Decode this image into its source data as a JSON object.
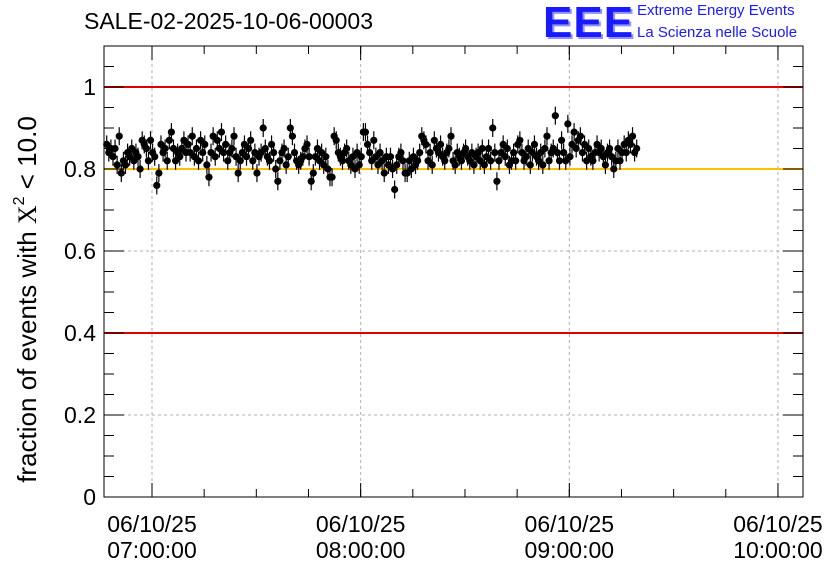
{
  "chart_data": {
    "type": "scatter",
    "title": "SALE-02-2025-10-06-00003",
    "ylabel_prefix": "fraction of events with ",
    "ylabel_chi": "X",
    "ylabel_sup": "2",
    "ylabel_suffix": " < 10.0",
    "ylim": [
      0,
      1.1
    ],
    "yticks": [
      "0",
      "0.2",
      "0.4",
      "0.6",
      "0.8",
      "1"
    ],
    "ytick_values": [
      0,
      0.2,
      0.4,
      0.6,
      0.8,
      1.0
    ],
    "xlim_hours": [
      6.77,
      10.12
    ],
    "xticks": [
      {
        "hour": 7,
        "date": "06/10/25",
        "time": "07:00:00"
      },
      {
        "hour": 8,
        "date": "06/10/25",
        "time": "08:00:00"
      },
      {
        "hour": 9,
        "date": "06/10/25",
        "time": "09:00:00"
      },
      {
        "hour": 10,
        "date": "06/10/25",
        "time": "10:00:00"
      }
    ],
    "ref_lines": [
      {
        "y": 1.0,
        "color": "#e00000"
      },
      {
        "y": 0.4,
        "color": "#e00000"
      },
      {
        "y": 0.8,
        "color": "#ffc000"
      }
    ],
    "error": 0.022,
    "x_start_hour": 6.783,
    "x_step_hour": 0.01,
    "values": [
      0.86,
      0.84,
      0.85,
      0.83,
      0.85,
      0.81,
      0.88,
      0.79,
      0.82,
      0.81,
      0.84,
      0.83,
      0.85,
      0.82,
      0.84,
      0.83,
      0.8,
      0.87,
      0.86,
      0.85,
      0.82,
      0.87,
      0.84,
      0.83,
      0.76,
      0.79,
      0.86,
      0.84,
      0.85,
      0.82,
      0.87,
      0.89,
      0.85,
      0.82,
      0.84,
      0.83,
      0.85,
      0.87,
      0.84,
      0.86,
      0.84,
      0.88,
      0.83,
      0.85,
      0.82,
      0.87,
      0.84,
      0.86,
      0.81,
      0.78,
      0.84,
      0.88,
      0.83,
      0.87,
      0.85,
      0.89,
      0.84,
      0.86,
      0.82,
      0.84,
      0.85,
      0.88,
      0.83,
      0.79,
      0.82,
      0.84,
      0.86,
      0.83,
      0.85,
      0.87,
      0.82,
      0.84,
      0.79,
      0.83,
      0.84,
      0.9,
      0.85,
      0.83,
      0.82,
      0.86,
      0.84,
      0.8,
      0.77,
      0.82,
      0.84,
      0.85,
      0.81,
      0.83,
      0.9,
      0.88,
      0.84,
      0.82,
      0.81,
      0.82,
      0.83,
      0.85,
      0.86,
      0.83,
      0.77,
      0.79,
      0.83,
      0.85,
      0.82,
      0.84,
      0.81,
      0.83,
      0.8,
      0.78,
      0.78,
      0.88,
      0.87,
      0.84,
      0.83,
      0.82,
      0.84,
      0.85,
      0.82,
      0.81,
      0.83,
      0.8,
      0.84,
      0.81,
      0.83,
      0.89,
      0.89,
      0.86,
      0.84,
      0.82,
      0.87,
      0.83,
      0.81,
      0.84,
      0.82,
      0.79,
      0.83,
      0.81,
      0.83,
      0.8,
      0.75,
      0.81,
      0.83,
      0.84,
      0.82,
      0.79,
      0.79,
      0.82,
      0.8,
      0.83,
      0.81,
      0.82,
      0.84,
      0.88,
      0.87,
      0.86,
      0.82,
      0.84,
      0.81,
      0.87,
      0.85,
      0.84,
      0.86,
      0.83,
      0.82,
      0.84,
      0.85,
      0.88,
      0.82,
      0.81,
      0.84,
      0.83,
      0.82,
      0.84,
      0.85,
      0.83,
      0.82,
      0.84,
      0.81,
      0.83,
      0.84,
      0.82,
      0.85,
      0.81,
      0.83,
      0.85,
      0.82,
      0.9,
      0.84,
      0.77,
      0.82,
      0.84,
      0.86,
      0.83,
      0.85,
      0.81,
      0.82,
      0.84,
      0.82,
      0.86,
      0.87,
      0.84,
      0.82,
      0.83,
      0.85,
      0.81,
      0.84,
      0.86,
      0.83,
      0.82,
      0.84,
      0.81,
      0.85,
      0.88,
      0.82,
      0.84,
      0.85,
      0.93,
      0.84,
      0.82,
      0.87,
      0.84,
      0.82,
      0.91,
      0.83,
      0.86,
      0.89,
      0.85,
      0.87,
      0.88,
      0.84,
      0.86,
      0.82,
      0.85,
      0.83,
      0.82,
      0.84,
      0.86,
      0.84,
      0.85,
      0.83,
      0.81,
      0.84,
      0.85,
      0.83,
      0.8,
      0.82,
      0.85,
      0.82,
      0.84,
      0.86,
      0.84,
      0.87,
      0.86,
      0.88,
      0.84,
      0.85
    ]
  },
  "logo": {
    "eee": "EEE",
    "line1": "Extreme Energy Events",
    "line2": "La Scienza nelle Scuole"
  }
}
